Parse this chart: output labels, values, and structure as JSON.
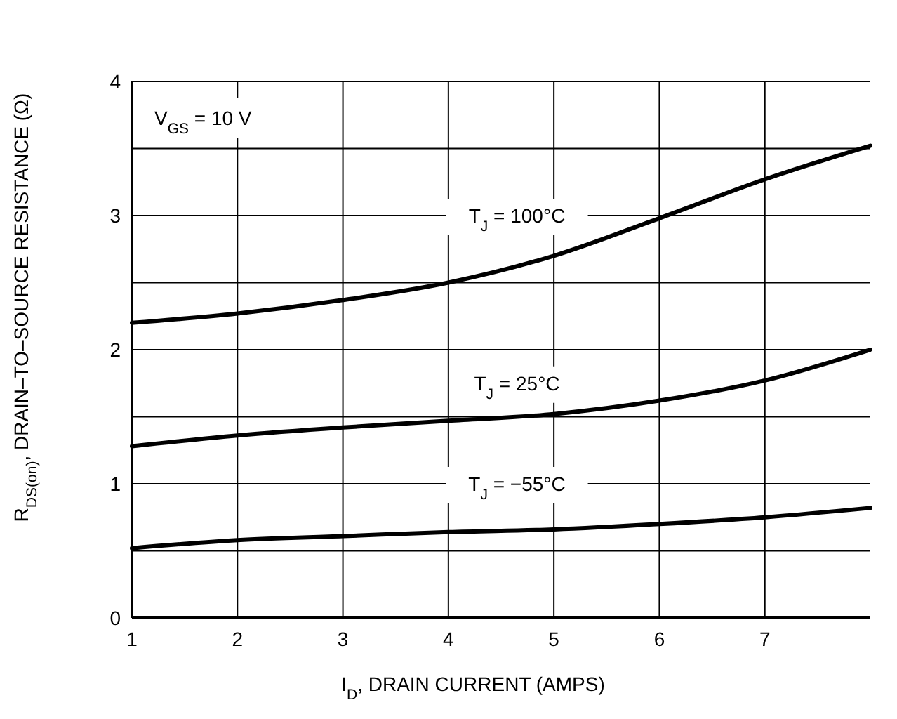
{
  "chart_data": {
    "type": "line",
    "xlabel": "I$_{D}$, DRAIN CURRENT (AMPS)",
    "ylabel": "R$_{DS(on)}$, DRAIN–TO–SOURCE RESISTANCE (Ω)",
    "annotations": [
      "V$_{GS}$ = 10 V"
    ],
    "x": [
      1,
      2,
      3,
      4,
      5,
      6,
      7,
      8
    ],
    "series": [
      {
        "name": "T$_{J}$ = 100°C",
        "color": "#000000",
        "values": [
          2.2,
          2.27,
          2.37,
          2.5,
          2.7,
          2.98,
          3.27,
          3.52
        ]
      },
      {
        "name": "T$_{J}$ = 25°C",
        "color": "#000000",
        "values": [
          1.28,
          1.36,
          1.42,
          1.47,
          1.52,
          1.62,
          1.77,
          2.0
        ]
      },
      {
        "name": "T$_{J}$ = −55°C",
        "color": "#000000",
        "values": [
          0.52,
          0.58,
          0.61,
          0.64,
          0.66,
          0.7,
          0.75,
          0.82
        ]
      }
    ],
    "xlim": [
      1,
      8
    ],
    "xticks": [
      1,
      2,
      3,
      4,
      5,
      6,
      7
    ],
    "ylim": [
      0,
      4
    ],
    "yticks": [
      0,
      {
        "value": 0.5,
        "label": null
      },
      1,
      {
        "value": 1.5,
        "label": null
      },
      2,
      {
        "value": 2.5,
        "label": null
      },
      3,
      {
        "value": 3.5,
        "label": null
      },
      4
    ],
    "grid": true,
    "marker": "none",
    "line_style": "solid"
  }
}
